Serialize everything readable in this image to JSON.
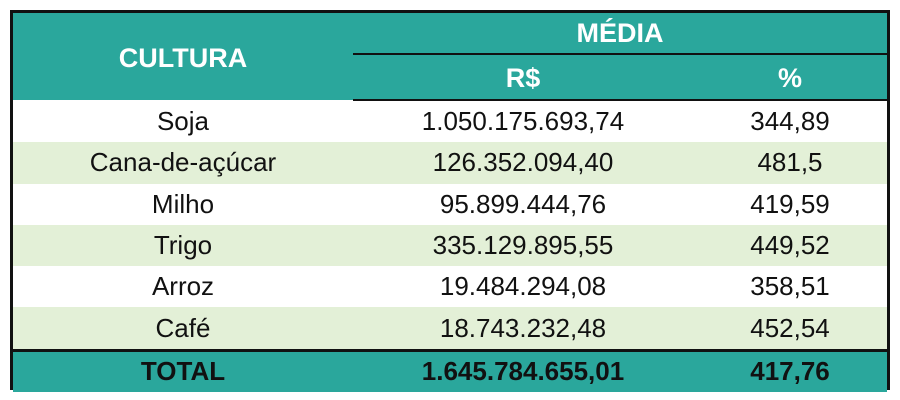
{
  "table": {
    "header_cultura": "CULTURA",
    "header_media": "MÉDIA",
    "header_rs": "R$",
    "header_pct": "%",
    "rows": [
      {
        "cultura": "Soja",
        "rs": "1.050.175.693,74",
        "pct": "344,89"
      },
      {
        "cultura": "Cana-de-açúcar",
        "rs": "126.352.094,40",
        "pct": "481,5"
      },
      {
        "cultura": "Milho",
        "rs": "95.899.444,76",
        "pct": "419,59"
      },
      {
        "cultura": "Trigo",
        "rs": "335.129.895,55",
        "pct": "449,52"
      },
      {
        "cultura": "Arroz",
        "rs": "19.484.294,08",
        "pct": "358,51"
      },
      {
        "cultura": "Café",
        "rs": "18.743.232,48",
        "pct": "452,54"
      }
    ],
    "total": {
      "label": "TOTAL",
      "rs": "1.645.784.655,01",
      "pct": "417,76"
    }
  },
  "colors": {
    "header_bg": "#2aa79c",
    "stripe_bg": "#e3f0d7",
    "border": "#111111"
  }
}
